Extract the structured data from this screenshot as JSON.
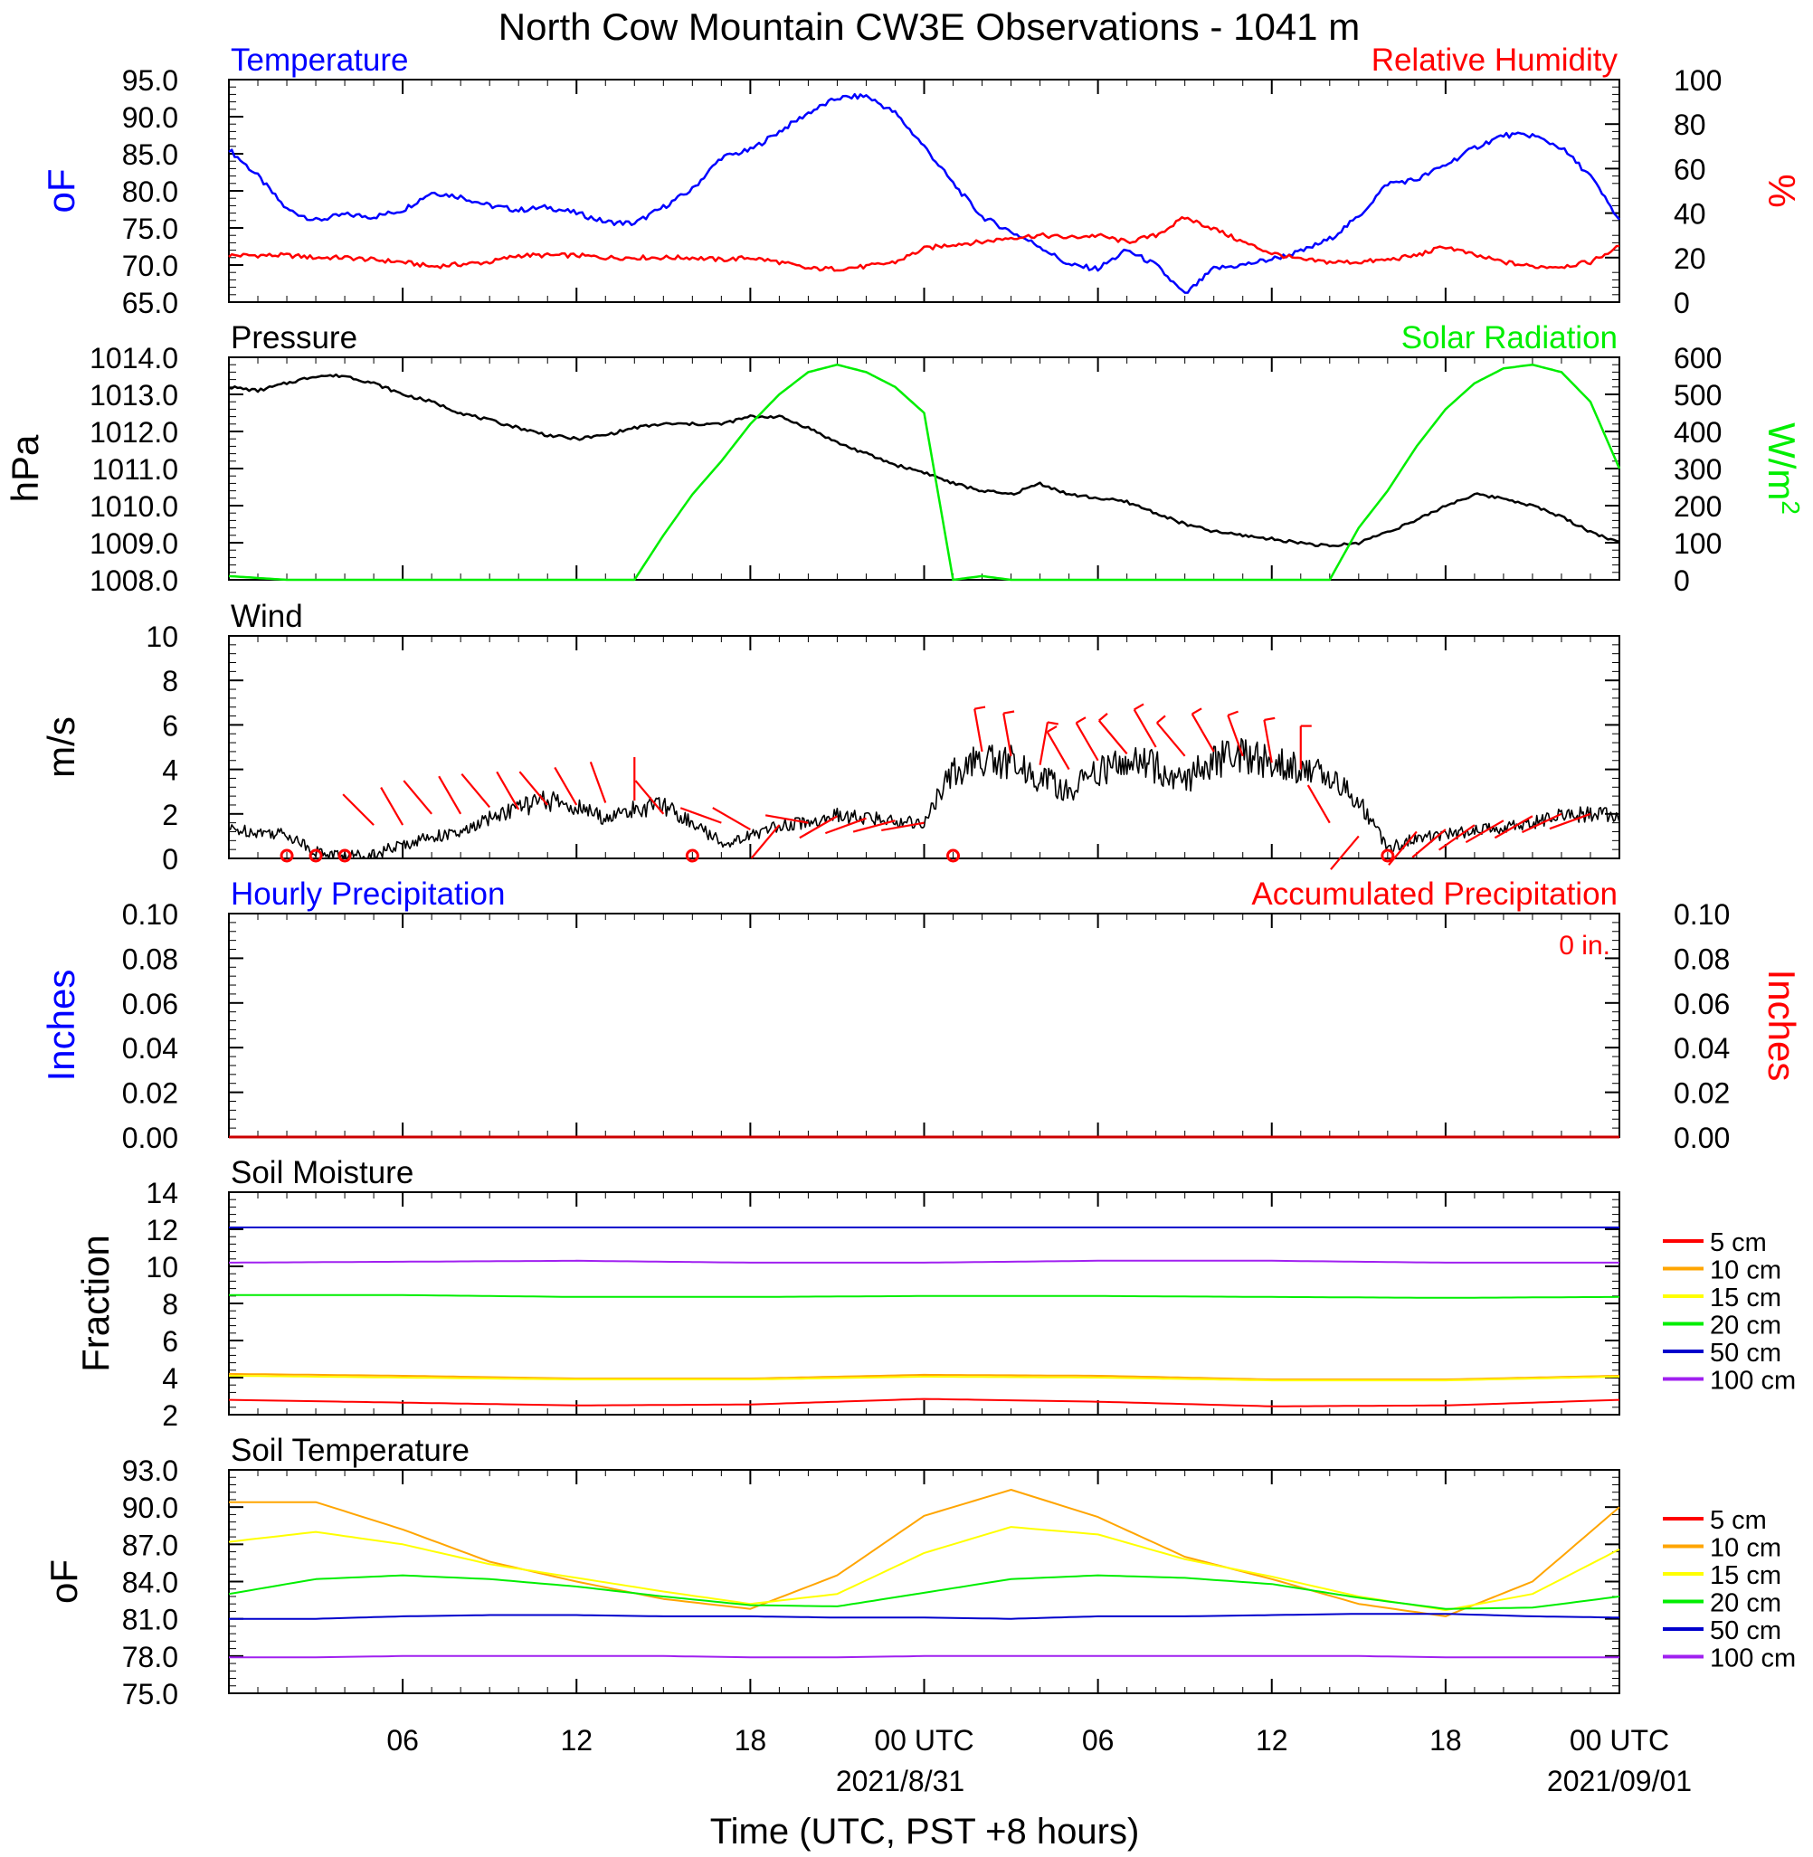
{
  "figure": {
    "title": "North Cow Mountain CW3E Observations - 1041 m",
    "xlabel": "Time (UTC, PST +8 hours)",
    "x_ticks": [
      "06",
      "12",
      "18",
      "00 UTC",
      "06",
      "12",
      "18",
      "00 UTC"
    ],
    "x_dates": [
      "2021/8/31",
      "2021/09/01"
    ]
  },
  "colors": {
    "temperature": "#0000ff",
    "humidity": "#ff0000",
    "pressure": "#000000",
    "solar": "#00ee00",
    "wind": "#000000",
    "barb": "#ff0000",
    "precip_hourly": "#0000ff",
    "precip_accum": "#cc0000",
    "depth_5": "#ff0000",
    "depth_10": "#ffa500",
    "depth_15": "#ffff00",
    "depth_20": "#00ee00",
    "depth_50": "#0000cc",
    "depth_100": "#a020f0"
  },
  "chart_data": [
    {
      "type": "line",
      "panel": "temperature-humidity",
      "left_title": "Temperature",
      "right_title": "Relative Humidity",
      "ylabel_left": "oF",
      "ylabel_right": "%",
      "ylim_left": [
        65,
        95
      ],
      "ylim_right": [
        0,
        100
      ],
      "yticks_left": [
        "95.0",
        "90.0",
        "85.0",
        "80.0",
        "75.0",
        "70.0",
        "65.0"
      ],
      "yticks_right": [
        "100",
        "80",
        "60",
        "40",
        "20",
        "0"
      ],
      "x_hours": [
        0,
        1,
        2,
        3,
        4,
        5,
        6,
        7,
        8,
        9,
        10,
        11,
        12,
        13,
        14,
        15,
        16,
        17,
        18,
        19,
        20,
        21,
        22,
        23,
        24,
        25,
        26,
        27,
        28,
        29,
        30,
        31,
        32,
        33,
        34,
        35,
        36,
        37,
        38,
        39,
        40,
        41,
        42,
        43,
        44,
        45,
        46,
        47,
        48
      ],
      "series": [
        {
          "name": "Temperature",
          "axis": "left",
          "values": [
            85.6,
            82.0,
            77.5,
            76.0,
            76.8,
            76.5,
            77.4,
            79.8,
            79.2,
            78.0,
            77.4,
            77.8,
            77.0,
            75.8,
            75.6,
            77.8,
            80.2,
            84.5,
            85.5,
            88.0,
            90.5,
            92.5,
            92.8,
            90.5,
            86.0,
            81.0,
            76.5,
            74.5,
            72.5,
            70.0,
            69.5,
            72.0,
            70.0,
            66.0,
            69.5,
            70.0,
            70.8,
            71.8,
            73.5,
            76.5,
            81.0,
            81.5,
            83.5,
            85.8,
            87.5,
            87.5,
            85.8,
            82.0,
            76.0
          ]
        },
        {
          "name": "Relative Humidity",
          "axis": "right",
          "values": [
            21,
            21,
            21,
            20,
            20,
            19,
            18,
            16,
            17,
            18,
            21,
            21,
            21,
            20,
            20,
            20,
            20,
            19,
            20,
            18,
            15,
            15,
            16,
            18,
            24,
            26,
            27,
            29,
            30,
            29,
            30,
            27,
            30,
            38,
            33,
            27,
            22,
            19,
            18,
            18,
            19,
            21,
            25,
            21,
            18,
            16,
            16,
            18,
            25
          ]
        }
      ]
    },
    {
      "type": "line",
      "panel": "pressure-solar",
      "left_title": "Pressure",
      "right_title": "Solar Radiation",
      "ylabel_left": "hPa",
      "ylabel_right": "W/m",
      "ylabel_right_sup": "2",
      "ylim_left": [
        1008,
        1014
      ],
      "ylim_right": [
        0,
        600
      ],
      "yticks_left": [
        "1014.0",
        "1013.0",
        "1012.0",
        "1011.0",
        "1010.0",
        "1009.0",
        "1008.0"
      ],
      "yticks_right": [
        "600",
        "500",
        "400",
        "300",
        "200",
        "100",
        "0"
      ],
      "x_hours": [
        0,
        1,
        2,
        3,
        4,
        5,
        6,
        7,
        8,
        9,
        10,
        11,
        12,
        13,
        14,
        15,
        16,
        17,
        18,
        19,
        20,
        21,
        22,
        23,
        24,
        25,
        26,
        27,
        28,
        29,
        30,
        31,
        32,
        33,
        34,
        35,
        36,
        37,
        38,
        39,
        40,
        41,
        42,
        43,
        44,
        45,
        46,
        47,
        48
      ],
      "series": [
        {
          "name": "Pressure",
          "axis": "left",
          "values": [
            1013.2,
            1013.1,
            1013.3,
            1013.5,
            1013.5,
            1013.3,
            1013.0,
            1012.8,
            1012.5,
            1012.3,
            1012.1,
            1011.9,
            1011.8,
            1011.9,
            1012.1,
            1012.2,
            1012.2,
            1012.2,
            1012.4,
            1012.4,
            1012.1,
            1011.7,
            1011.4,
            1011.1,
            1010.9,
            1010.6,
            1010.4,
            1010.3,
            1010.6,
            1010.3,
            1010.2,
            1010.1,
            1009.8,
            1009.5,
            1009.3,
            1009.2,
            1009.1,
            1009.0,
            1008.9,
            1009.0,
            1009.3,
            1009.6,
            1010.0,
            1010.3,
            1010.2,
            1010.0,
            1009.7,
            1009.3,
            1009.0
          ]
        },
        {
          "name": "Solar Radiation",
          "axis": "right",
          "values": [
            10,
            5,
            0,
            0,
            0,
            0,
            0,
            0,
            0,
            0,
            0,
            0,
            0,
            0,
            0,
            120,
            230,
            320,
            420,
            500,
            560,
            580,
            560,
            520,
            450,
            0,
            10,
            0,
            0,
            0,
            0,
            0,
            0,
            0,
            0,
            0,
            0,
            0,
            0,
            140,
            240,
            360,
            460,
            530,
            570,
            580,
            560,
            480,
            300
          ]
        }
      ]
    },
    {
      "type": "line",
      "panel": "wind",
      "left_title": "Wind",
      "ylabel_left": "m/s",
      "ylim_left": [
        0,
        10
      ],
      "yticks_left": [
        "10",
        "8",
        "6",
        "4",
        "2",
        "0"
      ],
      "x_hours": [
        0,
        1,
        2,
        3,
        4,
        5,
        6,
        7,
        8,
        9,
        10,
        11,
        12,
        13,
        14,
        15,
        16,
        17,
        18,
        19,
        20,
        21,
        22,
        23,
        24,
        25,
        26,
        27,
        28,
        29,
        30,
        31,
        32,
        33,
        34,
        35,
        36,
        37,
        38,
        39,
        40,
        41,
        42,
        43,
        44,
        45,
        46,
        47,
        48
      ],
      "series": [
        {
          "name": "Wind speed",
          "axis": "left",
          "values": [
            1.3,
            1.2,
            1.1,
            0.3,
            0.1,
            0.2,
            0.6,
            1.0,
            1.1,
            1.8,
            2.3,
            2.6,
            2.3,
            1.8,
            2.2,
            2.4,
            1.6,
            0.7,
            1.0,
            1.5,
            1.6,
            1.9,
            1.8,
            1.7,
            1.6,
            3.9,
            4.4,
            4.3,
            3.6,
            3.0,
            3.9,
            4.4,
            4.1,
            3.5,
            4.4,
            4.6,
            4.3,
            4.0,
            3.7,
            2.6,
            0.5,
            0.9,
            1.1,
            1.2,
            1.4,
            1.6,
            1.9,
            2.0,
            1.9
          ]
        }
      ],
      "calm_hours": [
        2,
        3,
        4,
        16,
        25,
        40
      ],
      "barbs": [
        {
          "h": 5,
          "speed": 1.5,
          "dir": 315
        },
        {
          "h": 6,
          "speed": 1.5,
          "dir": 330
        },
        {
          "h": 7,
          "speed": 2.0,
          "dir": 320
        },
        {
          "h": 8,
          "speed": 2.0,
          "dir": 330
        },
        {
          "h": 9,
          "speed": 2.3,
          "dir": 320
        },
        {
          "h": 10,
          "speed": 2.2,
          "dir": 330
        },
        {
          "h": 11,
          "speed": 2.4,
          "dir": 320
        },
        {
          "h": 12,
          "speed": 2.4,
          "dir": 330
        },
        {
          "h": 13,
          "speed": 2.5,
          "dir": 340
        },
        {
          "h": 14,
          "speed": 2.6,
          "dir": 0
        },
        {
          "h": 15,
          "speed": 2.0,
          "dir": 320
        },
        {
          "h": 17,
          "speed": 1.6,
          "dir": 290
        },
        {
          "h": 18,
          "speed": 1.3,
          "dir": 300
        },
        {
          "h": 19,
          "speed": 1.5,
          "dir": 220
        },
        {
          "h": 20,
          "speed": 1.6,
          "dir": 280
        },
        {
          "h": 21,
          "speed": 1.9,
          "dir": 240
        },
        {
          "h": 22,
          "speed": 1.8,
          "dir": 250
        },
        {
          "h": 23,
          "speed": 1.7,
          "dir": 255
        },
        {
          "h": 24,
          "speed": 1.6,
          "dir": 260
        },
        {
          "h": 26,
          "speed": 4.8,
          "dir": 350
        },
        {
          "h": 27,
          "speed": 4.6,
          "dir": 350
        },
        {
          "h": 28,
          "speed": 4.2,
          "dir": 10
        },
        {
          "h": 29,
          "speed": 4.0,
          "dir": 330
        },
        {
          "h": 30,
          "speed": 4.4,
          "dir": 330
        },
        {
          "h": 31,
          "speed": 4.7,
          "dir": 320
        },
        {
          "h": 32,
          "speed": 5.0,
          "dir": 330
        },
        {
          "h": 33,
          "speed": 4.6,
          "dir": 320
        },
        {
          "h": 34,
          "speed": 4.8,
          "dir": 330
        },
        {
          "h": 35,
          "speed": 4.6,
          "dir": 340
        },
        {
          "h": 36,
          "speed": 4.3,
          "dir": 350
        },
        {
          "h": 37,
          "speed": 4.0,
          "dir": 0
        },
        {
          "h": 38,
          "speed": 1.6,
          "dir": 330
        },
        {
          "h": 39,
          "speed": 1.0,
          "dir": 220
        },
        {
          "h": 41,
          "speed": 1.2,
          "dir": 220
        },
        {
          "h": 42,
          "speed": 1.3,
          "dir": 230
        },
        {
          "h": 43,
          "speed": 1.5,
          "dir": 235
        },
        {
          "h": 44,
          "speed": 1.7,
          "dir": 240
        },
        {
          "h": 45,
          "speed": 1.9,
          "dir": 240
        },
        {
          "h": 46,
          "speed": 2.0,
          "dir": 245
        },
        {
          "h": 47,
          "speed": 2.0,
          "dir": 250
        }
      ]
    },
    {
      "type": "line",
      "panel": "precipitation",
      "left_title": "Hourly Precipitation",
      "right_title": "Accumulated Precipitation",
      "annotation": "0 in.",
      "ylabel_left": "Inches",
      "ylabel_right": "Inches",
      "ylim_left": [
        0,
        0.1
      ],
      "ylim_right": [
        0,
        0.1
      ],
      "yticks_left": [
        "0.10",
        "0.08",
        "0.06",
        "0.04",
        "0.02",
        "0.00"
      ],
      "yticks_right": [
        "0.10",
        "0.08",
        "0.06",
        "0.04",
        "0.02",
        "0.00"
      ],
      "x_hours": [
        0,
        48
      ],
      "series": [
        {
          "name": "Hourly Precipitation",
          "axis": "left",
          "values": [
            0,
            0
          ]
        },
        {
          "name": "Accumulated Precipitation",
          "axis": "right",
          "values": [
            0,
            0
          ]
        }
      ]
    },
    {
      "type": "line",
      "panel": "soil-moisture",
      "left_title": "Soil Moisture",
      "ylabel_left": "Fraction",
      "ylim_left": [
        2,
        14
      ],
      "yticks_left": [
        "14",
        "12",
        "10",
        "8",
        "6",
        "4",
        "2"
      ],
      "legend": [
        "5 cm",
        "10 cm",
        "15 cm",
        "20 cm",
        "50 cm",
        "100 cm"
      ],
      "x_hours": [
        0,
        6,
        12,
        18,
        24,
        30,
        36,
        42,
        48
      ],
      "series": [
        {
          "name": "5 cm",
          "axis": "left",
          "values": [
            2.8,
            2.65,
            2.5,
            2.55,
            2.85,
            2.7,
            2.45,
            2.5,
            2.8
          ]
        },
        {
          "name": "10 cm",
          "axis": "left",
          "values": [
            4.2,
            4.1,
            3.95,
            3.95,
            4.15,
            4.1,
            3.9,
            3.9,
            4.1
          ]
        },
        {
          "name": "15 cm",
          "axis": "left",
          "values": [
            4.1,
            4.0,
            3.9,
            3.9,
            4.05,
            4.0,
            3.85,
            3.85,
            4.05
          ]
        },
        {
          "name": "20 cm",
          "axis": "left",
          "values": [
            8.45,
            8.45,
            8.35,
            8.35,
            8.4,
            8.4,
            8.35,
            8.3,
            8.35
          ]
        },
        {
          "name": "50 cm",
          "axis": "left",
          "values": [
            12.1,
            12.1,
            12.1,
            12.1,
            12.1,
            12.1,
            12.1,
            12.1,
            12.1
          ]
        },
        {
          "name": "100 cm",
          "axis": "left",
          "values": [
            10.2,
            10.25,
            10.3,
            10.2,
            10.2,
            10.3,
            10.3,
            10.2,
            10.2
          ]
        }
      ]
    },
    {
      "type": "line",
      "panel": "soil-temperature",
      "left_title": "Soil Temperature",
      "ylabel_left": "oF",
      "ylim_left": [
        75,
        93
      ],
      "yticks_left": [
        "93.0",
        "90.0",
        "87.0",
        "84.0",
        "81.0",
        "78.0",
        "75.0"
      ],
      "legend": [
        "5 cm",
        "10 cm",
        "15 cm",
        "20 cm",
        "50 cm",
        "100 cm"
      ],
      "x_hours": [
        0,
        3,
        6,
        9,
        12,
        15,
        18,
        21,
        24,
        27,
        30,
        33,
        36,
        39,
        42,
        45,
        48
      ],
      "series": [
        {
          "name": "10 cm",
          "axis": "left",
          "values": [
            90.4,
            90.4,
            88.2,
            85.6,
            84.0,
            82.6,
            81.8,
            84.5,
            89.3,
            91.4,
            89.2,
            86.0,
            84.2,
            82.2,
            81.2,
            84.0,
            90.0
          ]
        },
        {
          "name": "15 cm",
          "axis": "left",
          "values": [
            87.2,
            88.0,
            87.0,
            85.4,
            84.3,
            83.2,
            82.2,
            83.0,
            86.3,
            88.4,
            87.8,
            85.8,
            84.4,
            82.8,
            81.7,
            83.0,
            86.6
          ]
        },
        {
          "name": "20 cm",
          "axis": "left",
          "values": [
            83.0,
            84.2,
            84.5,
            84.2,
            83.6,
            82.8,
            82.1,
            82.0,
            83.1,
            84.2,
            84.5,
            84.3,
            83.8,
            82.7,
            81.8,
            81.9,
            82.8
          ]
        },
        {
          "name": "50 cm",
          "axis": "left",
          "values": [
            81.0,
            81.0,
            81.2,
            81.3,
            81.3,
            81.2,
            81.2,
            81.1,
            81.1,
            81.0,
            81.2,
            81.2,
            81.3,
            81.4,
            81.4,
            81.2,
            81.1
          ]
        },
        {
          "name": "100 cm",
          "axis": "left",
          "values": [
            77.9,
            77.9,
            78.0,
            78.0,
            78.0,
            78.0,
            77.9,
            77.9,
            78.0,
            78.0,
            78.0,
            78.0,
            78.0,
            78.0,
            77.9,
            77.9,
            77.9
          ]
        }
      ]
    }
  ]
}
